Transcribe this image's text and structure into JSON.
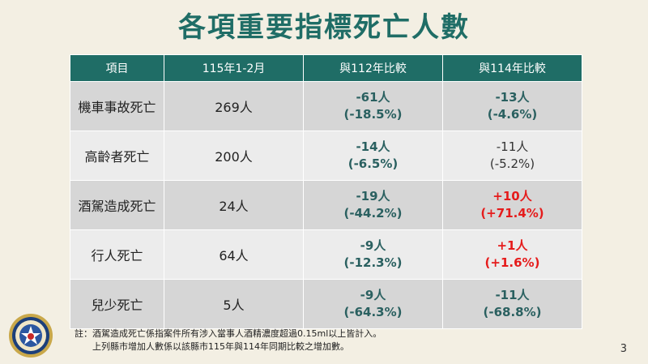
{
  "title": "各項重要指標死亡人數",
  "table": {
    "headers": [
      "項目",
      "115年1-2月",
      "與112年比較",
      "與114年比較"
    ],
    "rows": [
      {
        "label": "機車事故死亡",
        "value": "269人",
        "vs112": [
          "-61人",
          "(-18.5%)"
        ],
        "vs114": [
          "-13人",
          "(-4.6%)"
        ]
      },
      {
        "label": "高齡者死亡",
        "value": "200人",
        "vs112": [
          "-14人",
          "(-6.5%)"
        ],
        "vs114": [
          "-11人",
          "(-5.2%)"
        ]
      },
      {
        "label": "酒駕造成死亡",
        "value": "24人",
        "vs112": [
          "-19人",
          "(-44.2%)"
        ],
        "vs114": [
          "+10人",
          "(+71.4%)"
        ]
      },
      {
        "label": "行人死亡",
        "value": "64人",
        "vs112": [
          "-9人",
          "(-12.3%)"
        ],
        "vs114": [
          "+1人",
          "(+1.6%)"
        ]
      },
      {
        "label": "兒少死亡",
        "value": "5人",
        "vs112": [
          "-9人",
          "(-64.3%)"
        ],
        "vs114": [
          "-11人",
          "(-68.8%)"
        ]
      }
    ]
  },
  "note": {
    "line1": "註：酒駕造成死亡係指案件所有涉入當事人酒精濃度超過0.15ml以上皆計入。",
    "line2": "上列縣市增加人數係以該縣市115年與114年同期比較之增加數。"
  },
  "page_number": "3",
  "colors": {
    "header": "#1f6d66",
    "negative": "#2a6060",
    "positive": "#e51b1b"
  },
  "logo_icon": "police-emblem-icon"
}
